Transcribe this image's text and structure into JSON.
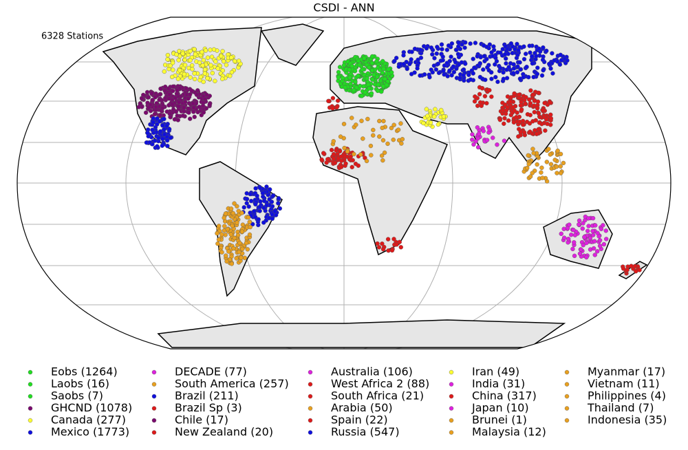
{
  "title": "CSDI - ANN",
  "station_count": "6328 Stations",
  "legend": {
    "items": [
      {
        "label": "Eobs (1264)",
        "color": "#22dd22"
      },
      {
        "label": "Laobs (16)",
        "color": "#22dd22"
      },
      {
        "label": "Saobs (7)",
        "color": "#22dd22"
      },
      {
        "label": "GHCND (1078)",
        "color": "#7a0a6e"
      },
      {
        "label": "Canada (277)",
        "color": "#ffff33"
      },
      {
        "label": "Mexico (1773)",
        "color": "#1010dd"
      },
      {
        "label": "DECADE (77)",
        "color": "#dd22dd"
      },
      {
        "label": "South America (257)",
        "color": "#e8a020"
      },
      {
        "label": "Brazil (211)",
        "color": "#1010dd"
      },
      {
        "label": "Brazil Sp (3)",
        "color": "#dd1a1a"
      },
      {
        "label": "Chile (17)",
        "color": "#7a0a6e"
      },
      {
        "label": "New Zealand (20)",
        "color": "#dd1a1a"
      },
      {
        "label": "Australia (106)",
        "color": "#dd22dd"
      },
      {
        "label": "West Africa 2 (88)",
        "color": "#dd1a1a"
      },
      {
        "label": "South Africa (21)",
        "color": "#dd1a1a"
      },
      {
        "label": "Arabia (50)",
        "color": "#e8a020"
      },
      {
        "label": "Spain (22)",
        "color": "#dd1a1a"
      },
      {
        "label": "Russia (547)",
        "color": "#1010dd"
      },
      {
        "label": "Iran (49)",
        "color": "#ffff33"
      },
      {
        "label": "India (31)",
        "color": "#dd22dd"
      },
      {
        "label": "China (317)",
        "color": "#dd1a1a"
      },
      {
        "label": "Japan (10)",
        "color": "#dd22dd"
      },
      {
        "label": "Brunei (1)",
        "color": "#e8a020"
      },
      {
        "label": "Malaysia (12)",
        "color": "#e8a020"
      },
      {
        "label": "Myanmar (17)",
        "color": "#e8a020"
      },
      {
        "label": "Vietnam (11)",
        "color": "#e8a020"
      },
      {
        "label": "Philippines (4)",
        "color": "#e8a020"
      },
      {
        "label": "Thailand (7)",
        "color": "#e8a020"
      },
      {
        "label": "Indonesia (35)",
        "color": "#e8a020"
      }
    ]
  }
}
